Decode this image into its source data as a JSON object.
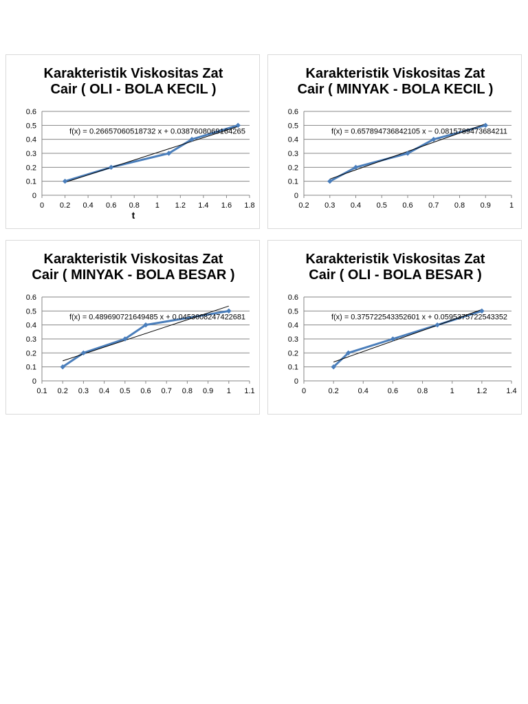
{
  "chart_data": [
    {
      "type": "scatter",
      "title_lines": [
        "Karakteristik Viskositas Zat",
        "Cair ( OLI - BOLA KECIL )"
      ],
      "xlabel": "t",
      "ylabel": "",
      "x": [
        0.2,
        0.6,
        1.1,
        1.3,
        1.7
      ],
      "y": [
        0.1,
        0.2,
        0.3,
        0.4,
        0.5
      ],
      "xlim": [
        0,
        1.8
      ],
      "ylim": [
        0,
        0.6
      ],
      "xticks": [
        "0",
        "0.2",
        "0.4",
        "0.6",
        "0.8",
        "1",
        "1.2",
        "1.4",
        "1.6",
        "1.8"
      ],
      "yticks": [
        "0",
        "0.1",
        "0.2",
        "0.3",
        "0.4",
        "0.5",
        "0.6"
      ],
      "trendline": {
        "slope": 0.26657060518732,
        "intercept": 0.0387608069164265,
        "x_range": [
          0.2,
          1.7
        ]
      },
      "equation": "f(x) = 0.26657060518732 x + 0.0387608069164265",
      "grid": "horizontal",
      "colors": {
        "series": "#4a7ebb",
        "trend": "#000000",
        "grid": "#868686"
      }
    },
    {
      "type": "scatter",
      "title_lines": [
        "Karakteristik Viskositas Zat",
        "Cair ( MINYAK - BOLA KECIL )"
      ],
      "xlabel": "",
      "ylabel": "",
      "x": [
        0.3,
        0.4,
        0.6,
        0.7,
        0.9
      ],
      "y": [
        0.1,
        0.2,
        0.3,
        0.4,
        0.5
      ],
      "xlim": [
        0.2,
        1
      ],
      "ylim": [
        0,
        0.6
      ],
      "xticks": [
        "0.2",
        "0.3",
        "0.4",
        "0.5",
        "0.6",
        "0.7",
        "0.8",
        "0.9",
        "1"
      ],
      "yticks": [
        "0",
        "0.1",
        "0.2",
        "0.3",
        "0.4",
        "0.5",
        "0.6"
      ],
      "trendline": {
        "slope": 0.657894736842105,
        "intercept": -0.0815789473684211,
        "x_range": [
          0.3,
          0.9
        ]
      },
      "equation": "f(x) = 0.657894736842105 x − 0.0815789473684211",
      "grid": "horizontal",
      "colors": {
        "series": "#4a7ebb",
        "trend": "#000000",
        "grid": "#868686"
      }
    },
    {
      "type": "scatter",
      "title_lines": [
        "Karakteristik Viskositas Zat",
        "Cair ( MINYAK - BOLA BESAR )"
      ],
      "xlabel": "",
      "ylabel": "",
      "x": [
        0.2,
        0.3,
        0.5,
        0.6,
        1.0
      ],
      "y": [
        0.1,
        0.2,
        0.3,
        0.4,
        0.5
      ],
      "xlim": [
        0.1,
        1.1
      ],
      "ylim": [
        0,
        0.6
      ],
      "xticks": [
        "0.1",
        "0.2",
        "0.3",
        "0.4",
        "0.5",
        "0.6",
        "0.7",
        "0.8",
        "0.9",
        "1",
        "1.1"
      ],
      "yticks": [
        "0",
        "0.1",
        "0.2",
        "0.3",
        "0.4",
        "0.5",
        "0.6"
      ],
      "trendline": {
        "slope": 0.489690721649485,
        "intercept": 0.0453608247422681,
        "x_range": [
          0.2,
          1.0
        ]
      },
      "equation": "f(x) = 0.489690721649485 x + 0.0453608247422681",
      "grid": "horizontal",
      "colors": {
        "series": "#4a7ebb",
        "trend": "#000000",
        "grid": "#868686"
      }
    },
    {
      "type": "scatter",
      "title_lines": [
        "Karakteristik Viskositas Zat",
        "Cair ( OLI - BOLA BESAR )"
      ],
      "xlabel": "",
      "ylabel": "",
      "x": [
        0.2,
        0.3,
        0.6,
        0.9,
        1.2
      ],
      "y": [
        0.1,
        0.2,
        0.3,
        0.4,
        0.5
      ],
      "xlim": [
        0,
        1.4
      ],
      "ylim": [
        0,
        0.6
      ],
      "xticks": [
        "0",
        "0.2",
        "0.4",
        "0.6",
        "0.8",
        "1",
        "1.2",
        "1.4"
      ],
      "yticks": [
        "0",
        "0.1",
        "0.2",
        "0.3",
        "0.4",
        "0.5",
        "0.6"
      ],
      "trendline": {
        "slope": 0.375722543352601,
        "intercept": 0.0595375722543352,
        "x_range": [
          0.2,
          1.2
        ]
      },
      "equation": "f(x) = 0.375722543352601 x + 0.0595375722543352",
      "grid": "horizontal",
      "colors": {
        "series": "#4a7ebb",
        "trend": "#000000",
        "grid": "#868686"
      }
    }
  ]
}
